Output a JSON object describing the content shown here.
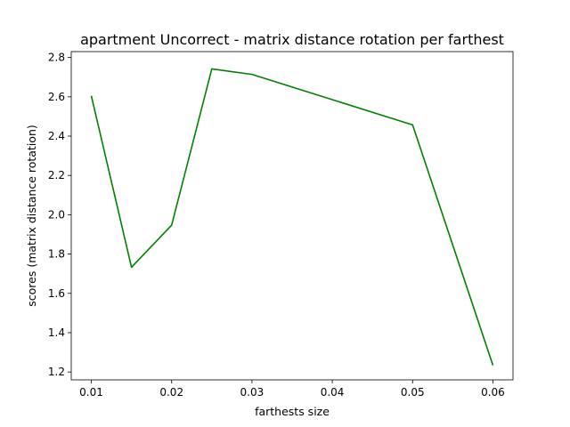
{
  "chart_data": {
    "type": "line",
    "title": "apartment Uncorrect - matrix distance rotation per farthest",
    "xlabel": "farthests size",
    "ylabel": "scores (matrix distance rotation)",
    "xlim": [
      0.0075,
      0.0625
    ],
    "ylim": [
      1.16,
      2.83
    ],
    "xticks": [
      0.01,
      0.02,
      0.03,
      0.04,
      0.05,
      0.06
    ],
    "xtick_labels": [
      "0.01",
      "0.02",
      "0.03",
      "0.04",
      "0.05",
      "0.06"
    ],
    "yticks": [
      1.2,
      1.4,
      1.6,
      1.8,
      2.0,
      2.2,
      2.4,
      2.6,
      2.8
    ],
    "ytick_labels": [
      "1.2",
      "1.4",
      "1.6",
      "1.8",
      "2.0",
      "2.2",
      "2.4",
      "2.6",
      "2.8"
    ],
    "grid": false,
    "series": [
      {
        "color": "#008000",
        "x": [
          0.01,
          0.015,
          0.02,
          0.025,
          0.03,
          0.05,
          0.06
        ],
        "y": [
          2.605,
          1.733,
          1.947,
          2.742,
          2.714,
          2.457,
          1.234
        ]
      }
    ]
  }
}
